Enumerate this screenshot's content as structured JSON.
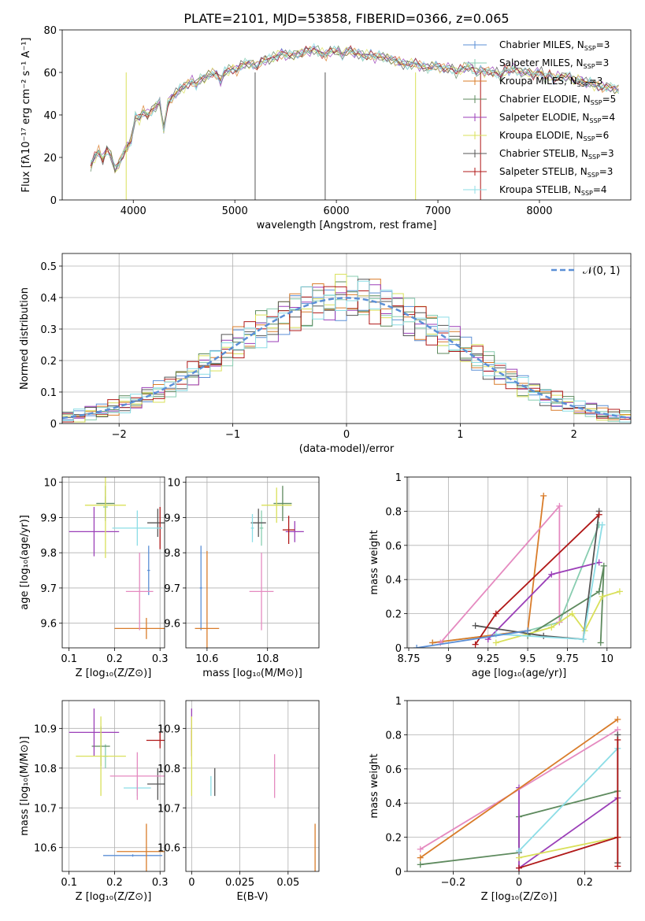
{
  "title": "PLATE=2101, MJD=53858, FIBERID=0366, z=0.065",
  "colors": {
    "Chabrier MILES": "#5b8fd6",
    "Salpeter MILES": "#88cdb0",
    "Kroupa MILES": "#d97c2a",
    "Chabrier ELODIE": "#5e8a5e",
    "Salpeter ELODIE": "#9b3fb8",
    "Kroupa ELODIE": "#d9e05a",
    "Chabrier STELIB": "#555555",
    "Salpeter STELIB": "#b01818",
    "Kroupa STELIB": "#8cdde6",
    "extra": "#e58ac0",
    "normal": "#5b8fd6"
  },
  "chart_data": [
    {
      "id": "spectrum",
      "type": "line",
      "xlabel": "wavelength [Angstrom, rest frame]",
      "ylabel": "Flux [fλ10⁻¹⁷ erg cm⁻² s⁻¹ A⁻¹]",
      "xlim": [
        3300,
        8900
      ],
      "ylim": [
        0,
        80
      ],
      "xticks": [
        4000,
        5000,
        6000,
        7000,
        8000
      ],
      "yticks": [
        0,
        20,
        40,
        60,
        80
      ],
      "legend_position": "top-right",
      "legend": [
        {
          "name": "Chabrier MILES",
          "label": "Chabrier MILES, N",
          "n": "3"
        },
        {
          "name": "Salpeter MILES",
          "label": "Salpeter MILES, N",
          "n": "3"
        },
        {
          "name": "Kroupa MILES",
          "label": "Kroupa MILES, N",
          "n": "3"
        },
        {
          "name": "Chabrier ELODIE",
          "label": "Chabrier ELODIE, N",
          "n": "5"
        },
        {
          "name": "Salpeter ELODIE",
          "label": "Salpeter ELODIE, N",
          "n": "4"
        },
        {
          "name": "Kroupa ELODIE",
          "label": "Kroupa ELODIE, N",
          "n": "6"
        },
        {
          "name": "Chabrier STELIB",
          "label": "Chabrier STELIB, N",
          "n": "3"
        },
        {
          "name": "Salpeter STELIB",
          "label": "Salpeter STELIB, N",
          "n": "3"
        },
        {
          "name": "Kroupa STELIB",
          "label": "Kroupa STELIB, N",
          "n": "4"
        }
      ],
      "legend_sub": "SSP",
      "x": [
        3580,
        3620,
        3660,
        3700,
        3740,
        3780,
        3820,
        3860,
        3900,
        3940,
        3980,
        4020,
        4060,
        4100,
        4140,
        4180,
        4220,
        4260,
        4300,
        4340,
        4380,
        4420,
        4460,
        4500,
        4540,
        4580,
        4620,
        4660,
        4700,
        4740,
        4780,
        4820,
        4860,
        4900,
        4940,
        4980,
        5020,
        5060,
        5100,
        5140,
        5180,
        5220,
        5260,
        5300,
        5340,
        5380,
        5420,
        5460,
        5500,
        5540,
        5580,
        5620,
        5660,
        5700,
        5740,
        5780,
        5820,
        5860,
        5900,
        5940,
        5980,
        6020,
        6060,
        6100,
        6140,
        6180,
        6220,
        6260,
        6300,
        6340,
        6380,
        6420,
        6460,
        6500,
        6540,
        6580,
        6620,
        6660,
        6700,
        6740,
        6780,
        6820,
        6860,
        6900,
        6940,
        6980,
        7020,
        7060,
        7100,
        7140,
        7180,
        7220,
        7260,
        7300,
        7340,
        7380,
        7420,
        7460,
        7500,
        7540,
        7580,
        7620,
        7660,
        7700,
        7740,
        7780,
        7820,
        7860,
        7900,
        7940,
        7980,
        8020,
        8060,
        8100,
        8140,
        8180,
        8220,
        8260,
        8300,
        8340,
        8380,
        8420,
        8460,
        8500,
        8540,
        8580,
        8620,
        8660,
        8700,
        8740,
        8780
      ],
      "y": [
        16,
        20,
        23,
        19,
        24,
        21,
        14,
        17,
        22,
        25,
        28,
        39,
        38,
        42,
        40,
        42,
        44,
        46,
        33,
        46,
        48,
        50,
        52,
        53,
        55,
        56,
        54,
        57,
        57,
        59,
        60,
        59,
        56,
        60,
        61,
        62,
        61,
        63,
        64,
        64,
        64,
        63,
        65,
        66,
        66,
        67,
        68,
        69,
        68,
        68,
        68,
        69,
        69,
        70,
        70,
        71,
        70,
        69,
        68,
        70,
        70,
        70,
        68,
        70,
        70,
        69,
        69,
        68,
        68,
        68,
        67,
        68,
        67,
        67,
        66,
        65,
        65,
        64,
        64,
        64,
        64,
        63,
        63,
        62,
        63,
        63,
        62,
        62,
        62,
        62,
        60,
        61,
        62,
        63,
        62,
        60,
        61,
        60,
        61,
        60,
        60,
        58,
        61,
        61,
        62,
        61,
        60,
        60,
        60,
        59,
        60,
        60,
        57,
        59,
        57,
        58,
        58,
        58,
        58,
        56,
        57,
        56,
        55,
        55,
        54,
        54,
        53,
        53,
        53,
        52,
        52
      ]
    },
    {
      "id": "residuals",
      "type": "histogram",
      "xlabel": "(data-model)/error",
      "ylabel": "Normed distribution",
      "xlim": [
        -2.5,
        2.5
      ],
      "ylim": [
        0,
        0.54
      ],
      "xticks": [
        -2,
        -1,
        0,
        1,
        2
      ],
      "yticks": [
        0.0,
        0.1,
        0.2,
        0.3,
        0.4,
        0.5
      ],
      "legend": "𝒩(0, 1)",
      "legend_position": "top-right",
      "bin_width": 0.1,
      "reference_curve": "normal(0,1)"
    },
    {
      "id": "age-vs-Z",
      "type": "errorbar",
      "xlabel": "Z [log₁₀(Z/Z⊙)]",
      "ylabel": "age  [log₁₀(age/yr)]",
      "xlim": [
        0.085,
        0.31
      ],
      "ylim": [
        9.53,
        10.015
      ],
      "xticks": [
        0.1,
        0.2,
        0.3
      ],
      "yticks": [
        9.6,
        9.7,
        9.8,
        9.9,
        10.0
      ],
      "points": [
        {
          "c": "Chabrier MILES",
          "x": 0.275,
          "y": 9.75,
          "xerr": 0.003,
          "yerr": 0.07
        },
        {
          "c": "Salpeter MILES",
          "x": 0.18,
          "y": 9.93,
          "xerr": 0.005,
          "yerr": 0.03
        },
        {
          "c": "Kroupa MILES",
          "x": 0.27,
          "y": 9.585,
          "xerr": 0.07,
          "yerr": 0.03
        },
        {
          "c": "Chabrier ELODIE",
          "x": 0.18,
          "y": 9.94,
          "xerr": 0.02,
          "yerr": 0.05
        },
        {
          "c": "Salpeter ELODIE",
          "x": 0.155,
          "y": 9.86,
          "xerr": 0.055,
          "yerr": 0.07
        },
        {
          "c": "Kroupa ELODIE",
          "x": 0.18,
          "y": 9.935,
          "xerr": 0.045,
          "yerr": 0.15
        },
        {
          "c": "Chabrier STELIB",
          "x": 0.295,
          "y": 9.885,
          "xerr": 0.023,
          "yerr": 0.04
        },
        {
          "c": "Salpeter STELIB",
          "x": 0.3,
          "y": 9.87,
          "xerr": 0.003,
          "yerr": 0.06
        },
        {
          "c": "Kroupa STELIB",
          "x": 0.25,
          "y": 9.87,
          "xerr": 0.055,
          "yerr": 0.05
        },
        {
          "c": "extra",
          "x": 0.255,
          "y": 9.69,
          "xerr": 0.03,
          "yerr": 0.11
        }
      ]
    },
    {
      "id": "age-vs-mass",
      "type": "errorbar",
      "xlabel": "mass [log₁₀(M/M⊙)]",
      "xlim": [
        10.53,
        10.97
      ],
      "ylim": [
        9.53,
        10.015
      ],
      "xticks": [
        10.6,
        10.8
      ],
      "yticks": [
        9.6,
        9.7,
        9.8,
        9.9,
        10.0
      ],
      "points": [
        {
          "c": "Chabrier MILES",
          "x": 10.58,
          "y": 9.7,
          "xerr": 0.004,
          "yerr": 0.12
        },
        {
          "c": "Salpeter MILES",
          "x": 10.78,
          "y": 9.87,
          "xerr": 0.006,
          "yerr": 0.05
        },
        {
          "c": "Kroupa MILES",
          "x": 10.6,
          "y": 9.585,
          "xerr": 0.04,
          "yerr": 0.22
        },
        {
          "c": "Chabrier ELODIE",
          "x": 10.85,
          "y": 9.94,
          "xerr": 0.03,
          "yerr": 0.05
        },
        {
          "c": "Salpeter ELODIE",
          "x": 10.89,
          "y": 9.86,
          "xerr": 0.03,
          "yerr": 0.03
        },
        {
          "c": "Kroupa ELODIE",
          "x": 10.83,
          "y": 9.935,
          "xerr": 0.05,
          "yerr": 0.05
        },
        {
          "c": "Chabrier STELIB",
          "x": 10.77,
          "y": 9.885,
          "xerr": 0.025,
          "yerr": 0.04
        },
        {
          "c": "Salpeter STELIB",
          "x": 10.87,
          "y": 9.865,
          "xerr": 0.02,
          "yerr": 0.04
        },
        {
          "c": "Kroupa STELIB",
          "x": 10.75,
          "y": 9.87,
          "xerr": 0.005,
          "yerr": 0.04
        },
        {
          "c": "extra",
          "x": 10.78,
          "y": 9.69,
          "xerr": 0.04,
          "yerr": 0.11
        }
      ]
    },
    {
      "id": "weight-vs-age",
      "type": "line",
      "xlabel": "age  [log₁₀(age/yr)]",
      "ylabel": "mass weight",
      "xlim": [
        8.74,
        10.15
      ],
      "ylim": [
        0,
        1.0
      ],
      "xticks": [
        8.75,
        9.0,
        9.25,
        9.5,
        9.75,
        10.0
      ],
      "yticks": [
        0.0,
        0.2,
        0.4,
        0.6,
        0.8,
        1.0
      ],
      "series": [
        {
          "c": "Salpeter MILES",
          "x": [
            8.9,
            9.5,
            9.7,
            9.95
          ],
          "y": [
            0.03,
            0.1,
            0.15,
            0.72
          ]
        },
        {
          "c": "Kroupa MILES",
          "x": [
            8.9,
            9.5,
            9.6
          ],
          "y": [
            0.03,
            0.1,
            0.89
          ]
        },
        {
          "c": "extra",
          "x": [
            8.95,
            9.7,
            9.7
          ],
          "y": [
            0.03,
            0.83,
            0.15
          ]
        },
        {
          "c": "Chabrier ELODIE",
          "x": [
            9.5,
            9.95,
            9.98,
            9.96
          ],
          "y": [
            0.07,
            0.33,
            0.48,
            0.03
          ]
        },
        {
          "c": "Salpeter ELODIE",
          "x": [
            9.25,
            9.65,
            9.95
          ],
          "y": [
            0.05,
            0.43,
            0.5
          ]
        },
        {
          "c": "Kroupa ELODIE",
          "x": [
            9.3,
            9.65,
            9.78,
            9.86,
            9.97,
            10.08
          ],
          "y": [
            0.03,
            0.12,
            0.2,
            0.1,
            0.3,
            0.33
          ]
        },
        {
          "c": "Chabrier STELIB",
          "x": [
            9.17,
            9.6,
            9.85,
            9.95
          ],
          "y": [
            0.13,
            0.07,
            0.05,
            0.8
          ]
        },
        {
          "c": "Salpeter STELIB",
          "x": [
            9.17,
            9.3,
            9.95
          ],
          "y": [
            0.02,
            0.2,
            0.78
          ]
        },
        {
          "c": "Kroupa STELIB",
          "x": [
            9.3,
            9.85,
            9.97
          ],
          "y": [
            0.08,
            0.05,
            0.72
          ]
        },
        {
          "c": "Chabrier MILES",
          "x": [
            8.8,
            9.5
          ],
          "y": [
            0.0,
            0.1
          ]
        }
      ]
    },
    {
      "id": "mass-vs-Z",
      "type": "errorbar",
      "xlabel": "Z [log₁₀(Z/Z⊙)]",
      "ylabel": "mass [log₁₀(M/M⊙)]",
      "xlim": [
        0.085,
        0.31
      ],
      "ylim": [
        10.54,
        10.97
      ],
      "xticks": [
        0.1,
        0.2,
        0.3
      ],
      "yticks": [
        10.6,
        10.7,
        10.8,
        10.9
      ],
      "points": [
        {
          "c": "Chabrier MILES",
          "x": 0.24,
          "y": 10.58,
          "xerr": 0.065,
          "yerr": 0.003
        },
        {
          "c": "Salpeter MILES",
          "x": 0.18,
          "y": 10.83,
          "xerr": 0.005,
          "yerr": 0.03
        },
        {
          "c": "Kroupa MILES",
          "x": 0.27,
          "y": 10.59,
          "xerr": 0.065,
          "yerr": 0.07
        },
        {
          "c": "Chabrier ELODIE",
          "x": 0.17,
          "y": 10.855,
          "xerr": 0.02,
          "yerr": 0.05
        },
        {
          "c": "Salpeter ELODIE",
          "x": 0.155,
          "y": 10.89,
          "xerr": 0.055,
          "yerr": 0.06
        },
        {
          "c": "Kroupa ELODIE",
          "x": 0.17,
          "y": 10.83,
          "xerr": 0.055,
          "yerr": 0.1
        },
        {
          "c": "Chabrier STELIB",
          "x": 0.295,
          "y": 10.76,
          "xerr": 0.023,
          "yerr": 0.04
        },
        {
          "c": "Salpeter STELIB",
          "x": 0.3,
          "y": 10.87,
          "xerr": 0.03,
          "yerr": 0.02
        },
        {
          "c": "Kroupa STELIB",
          "x": 0.25,
          "y": 10.75,
          "xerr": 0.03,
          "yerr": 0.02
        },
        {
          "c": "extra",
          "x": 0.25,
          "y": 10.78,
          "xerr": 0.06,
          "yerr": 0.06
        }
      ]
    },
    {
      "id": "mass-vs-EBV",
      "type": "errorbar",
      "xlabel": "E(B-V)",
      "xlim": [
        -0.003,
        0.066
      ],
      "ylim": [
        10.54,
        10.97
      ],
      "xticks": [
        0.0,
        0.025,
        0.05
      ],
      "yticks": [
        10.6,
        10.7,
        10.8,
        10.9
      ],
      "points": [
        {
          "c": "Salpeter ELODIE",
          "x": 0.0,
          "y": 10.89,
          "xerr": 0,
          "yerr": 0.06
        },
        {
          "c": "Salpeter STELIB",
          "x": 0.0,
          "y": 10.87,
          "xerr": 0,
          "yerr": 0.025
        },
        {
          "c": "Kroupa ELODIE",
          "x": 0.0,
          "y": 10.83,
          "xerr": 0,
          "yerr": 0.1
        },
        {
          "c": "Kroupa STELIB",
          "x": 0.01,
          "y": 10.755,
          "xerr": 0,
          "yerr": 0.025
        },
        {
          "c": "Chabrier STELIB",
          "x": 0.012,
          "y": 10.765,
          "xerr": 0,
          "yerr": 0.035
        },
        {
          "c": "extra",
          "x": 0.043,
          "y": 10.78,
          "xerr": 0,
          "yerr": 0.055
        },
        {
          "c": "Kroupa MILES",
          "x": 0.064,
          "y": 10.6,
          "xerr": 0,
          "yerr": 0.06
        }
      ]
    },
    {
      "id": "weight-vs-Z",
      "type": "line",
      "xlabel": "Z [log₁₀(Z/Z⊙)]",
      "ylabel": "mass weight",
      "xlim": [
        -0.34,
        0.34
      ],
      "ylim": [
        0,
        1.0
      ],
      "xticks": [
        -0.2,
        0.0,
        0.2
      ],
      "yticks": [
        0.0,
        0.2,
        0.4,
        0.6,
        0.8,
        1.0
      ],
      "series": [
        {
          "c": "Chabrier ELODIE",
          "x": [
            -0.3,
            0.0,
            0.0,
            0.3
          ],
          "y": [
            0.04,
            0.11,
            0.32,
            0.47
          ]
        },
        {
          "c": "Salpeter ELODIE",
          "x": [
            0.0,
            0.0,
            0.3
          ],
          "y": [
            0.49,
            0.02,
            0.43
          ]
        },
        {
          "c": "Kroupa ELODIE",
          "x": [
            0.0,
            0.3
          ],
          "y": [
            0.08,
            0.2
          ]
        },
        {
          "c": "Kroupa STELIB",
          "x": [
            0.0,
            0.3
          ],
          "y": [
            0.12,
            0.72
          ]
        },
        {
          "c": "Salpeter STELIB",
          "x": [
            0.0,
            0.3
          ],
          "y": [
            0.02,
            0.2
          ]
        },
        {
          "c": "extra",
          "x": [
            -0.3,
            0.3
          ],
          "y": [
            0.13,
            0.83
          ]
        },
        {
          "c": "Kroupa MILES",
          "x": [
            -0.3,
            0.3
          ],
          "y": [
            0.08,
            0.89
          ]
        },
        {
          "c": "Chabrier STELIB",
          "x": [
            0.3,
            0.3
          ],
          "y": [
            0.05,
            0.8
          ]
        },
        {
          "c": "Salpeter STELIB",
          "x": [
            0.3,
            0.3
          ],
          "y": [
            0.03,
            0.77
          ]
        }
      ]
    }
  ]
}
